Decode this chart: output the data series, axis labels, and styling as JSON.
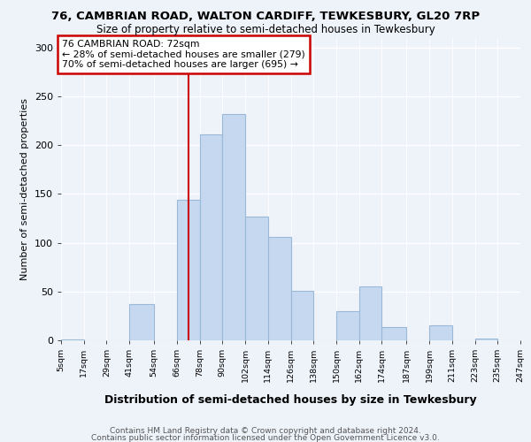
{
  "title1": "76, CAMBRIAN ROAD, WALTON CARDIFF, TEWKESBURY, GL20 7RP",
  "title2": "Size of property relative to semi-detached houses in Tewkesbury",
  "xlabel": "Distribution of semi-detached houses by size in Tewkesbury",
  "ylabel": "Number of semi-detached properties",
  "footer1": "Contains HM Land Registry data © Crown copyright and database right 2024.",
  "footer2": "Contains public sector information licensed under the Open Government Licence v3.0.",
  "property_size": 72,
  "pct_smaller": 28,
  "count_smaller": 279,
  "pct_larger": 70,
  "count_larger": 695,
  "bin_edges": [
    5,
    17,
    29,
    41,
    54,
    66,
    78,
    90,
    102,
    114,
    126,
    138,
    150,
    162,
    174,
    187,
    199,
    211,
    223,
    235,
    247
  ],
  "bin_labels": [
    "5sqm",
    "17sqm",
    "29sqm",
    "41sqm",
    "54sqm",
    "66sqm",
    "78sqm",
    "90sqm",
    "102sqm",
    "114sqm",
    "126sqm",
    "138sqm",
    "150sqm",
    "162sqm",
    "174sqm",
    "187sqm",
    "199sqm",
    "211sqm",
    "223sqm",
    "235sqm",
    "247sqm"
  ],
  "counts": [
    1,
    0,
    0,
    37,
    0,
    144,
    211,
    232,
    127,
    106,
    51,
    0,
    30,
    55,
    14,
    0,
    15,
    0,
    2,
    0
  ],
  "bar_color": "#c5d8f0",
  "bar_edge_color": "#9ab8d8",
  "line_color": "#cc0000",
  "box_edge_color": "#cc0000",
  "bg_color": "#eef2f9",
  "ylim": [
    0,
    310
  ],
  "yticks": [
    0,
    50,
    100,
    150,
    200,
    250,
    300
  ]
}
